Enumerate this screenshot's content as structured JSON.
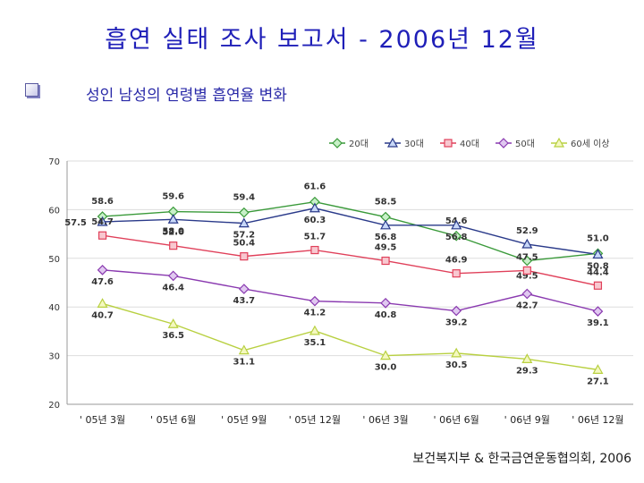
{
  "slide": {
    "title": "흡연 실태 조사 보고서 - 2006년 12월",
    "subtitle": "성인 남성의 연령별 흡연율 변화",
    "source": "보건복지부 & 한국금연운동협의회, 2006"
  },
  "icons": {
    "bullet": "checkbox-bullet-icon"
  },
  "chart_data": {
    "type": "line",
    "categories": [
      "' 05년 3월",
      "' 05년 6월",
      "' 05년 9월",
      "' 05년 12월",
      "' 06년 3월",
      "' 06년 6월",
      "' 06년 9월",
      "' 06년 12월"
    ],
    "ylim": [
      20,
      70
    ],
    "yticks": [
      20,
      30,
      40,
      50,
      60,
      70
    ],
    "grid": true,
    "legend_position": "top-right",
    "series": [
      {
        "name": "20대",
        "values": [
          58.6,
          59.6,
          59.4,
          61.6,
          58.5,
          54.6,
          49.5,
          51.0
        ],
        "color": "#3a9a3a",
        "marker": "diamond"
      },
      {
        "name": "30대",
        "values": [
          57.5,
          58.0,
          57.2,
          60.3,
          56.8,
          56.8,
          52.9,
          50.8
        ],
        "color": "#2a3a8a",
        "marker": "triangle"
      },
      {
        "name": "40대",
        "values": [
          54.7,
          52.6,
          50.4,
          51.7,
          49.5,
          46.9,
          47.5,
          44.4
        ],
        "color": "#e0405a",
        "marker": "square"
      },
      {
        "name": "50대",
        "values": [
          47.6,
          46.4,
          43.7,
          41.2,
          40.8,
          39.2,
          42.7,
          39.1
        ],
        "color": "#8a3ab0",
        "marker": "diamond"
      },
      {
        "name": "60세 이상",
        "values": [
          40.7,
          36.5,
          31.1,
          35.1,
          30.0,
          30.5,
          29.3,
          27.1
        ],
        "color": "#b8d040",
        "marker": "triangle"
      }
    ]
  }
}
